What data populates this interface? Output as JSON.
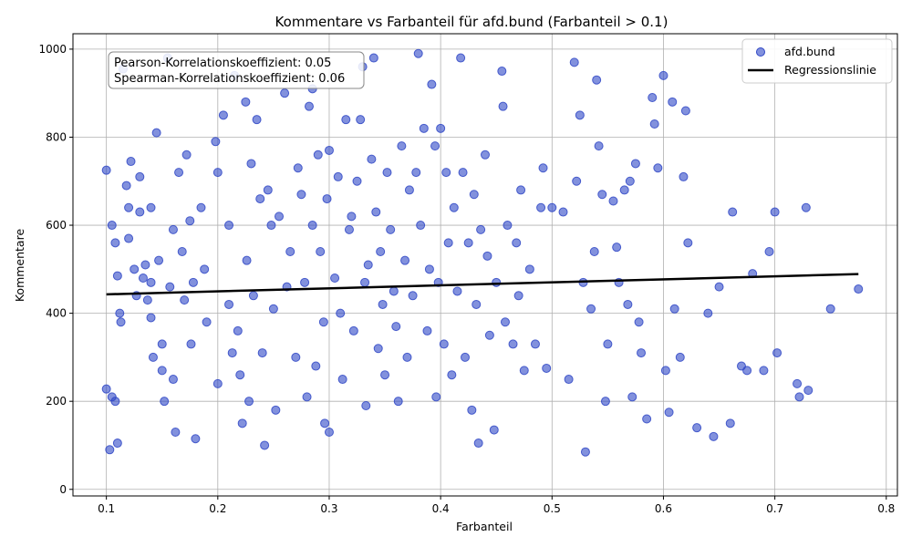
{
  "chart_data": {
    "type": "scatter",
    "title": "Kommentare vs Farbanteil für afd.bund (Farbanteil > 0.1)",
    "xlabel": "Farbanteil",
    "ylabel": "Kommentare",
    "xlim": [
      0.07,
      0.81
    ],
    "ylim": [
      -15,
      1035
    ],
    "xticks": [
      "0.1",
      "0.2",
      "0.3",
      "0.4",
      "0.5",
      "0.6",
      "0.7",
      "0.8"
    ],
    "yticks": [
      "0",
      "200",
      "400",
      "600",
      "800",
      "1000"
    ],
    "grid": true,
    "legend_position": "top-right",
    "stats_box": [
      "Pearson-Korrelationskoeffizient: 0.05",
      "Spearman-Korrelationskoeffizient: 0.06"
    ],
    "series": [
      {
        "name": "afd.bund",
        "kind": "scatter",
        "color": "#2f47c6",
        "points": [
          [
            0.1,
            725
          ],
          [
            0.105,
            600
          ],
          [
            0.108,
            560
          ],
          [
            0.11,
            485
          ],
          [
            0.112,
            400
          ],
          [
            0.113,
            380
          ],
          [
            0.1,
            228
          ],
          [
            0.105,
            210
          ],
          [
            0.108,
            200
          ],
          [
            0.103,
            90
          ],
          [
            0.11,
            105
          ],
          [
            0.115,
            955
          ],
          [
            0.118,
            690
          ],
          [
            0.12,
            640
          ],
          [
            0.12,
            570
          ],
          [
            0.122,
            745
          ],
          [
            0.125,
            500
          ],
          [
            0.127,
            440
          ],
          [
            0.13,
            630
          ],
          [
            0.13,
            710
          ],
          [
            0.133,
            480
          ],
          [
            0.135,
            510
          ],
          [
            0.137,
            430
          ],
          [
            0.14,
            640
          ],
          [
            0.14,
            470
          ],
          [
            0.14,
            390
          ],
          [
            0.142,
            300
          ],
          [
            0.145,
            810
          ],
          [
            0.147,
            520
          ],
          [
            0.15,
            330
          ],
          [
            0.15,
            270
          ],
          [
            0.152,
            200
          ],
          [
            0.155,
            980
          ],
          [
            0.157,
            460
          ],
          [
            0.16,
            590
          ],
          [
            0.16,
            250
          ],
          [
            0.162,
            130
          ],
          [
            0.165,
            720
          ],
          [
            0.168,
            540
          ],
          [
            0.17,
            430
          ],
          [
            0.172,
            760
          ],
          [
            0.175,
            610
          ],
          [
            0.176,
            330
          ],
          [
            0.178,
            470
          ],
          [
            0.18,
            115
          ],
          [
            0.185,
            640
          ],
          [
            0.188,
            500
          ],
          [
            0.19,
            380
          ],
          [
            0.198,
            790
          ],
          [
            0.2,
            720
          ],
          [
            0.2,
            240
          ],
          [
            0.205,
            850
          ],
          [
            0.21,
            600
          ],
          [
            0.21,
            420
          ],
          [
            0.213,
            310
          ],
          [
            0.215,
            940
          ],
          [
            0.218,
            360
          ],
          [
            0.22,
            260
          ],
          [
            0.222,
            150
          ],
          [
            0.225,
            880
          ],
          [
            0.226,
            520
          ],
          [
            0.228,
            200
          ],
          [
            0.23,
            740
          ],
          [
            0.232,
            440
          ],
          [
            0.235,
            840
          ],
          [
            0.238,
            660
          ],
          [
            0.24,
            310
          ],
          [
            0.242,
            100
          ],
          [
            0.245,
            680
          ],
          [
            0.248,
            600
          ],
          [
            0.25,
            410
          ],
          [
            0.252,
            180
          ],
          [
            0.255,
            620
          ],
          [
            0.26,
            900
          ],
          [
            0.262,
            460
          ],
          [
            0.265,
            540
          ],
          [
            0.27,
            300
          ],
          [
            0.272,
            730
          ],
          [
            0.275,
            670
          ],
          [
            0.278,
            470
          ],
          [
            0.28,
            210
          ],
          [
            0.282,
            870
          ],
          [
            0.285,
            600
          ],
          [
            0.285,
            910
          ],
          [
            0.288,
            280
          ],
          [
            0.29,
            760
          ],
          [
            0.292,
            540
          ],
          [
            0.295,
            380
          ],
          [
            0.296,
            150
          ],
          [
            0.298,
            660
          ],
          [
            0.3,
            770
          ],
          [
            0.3,
            130
          ],
          [
            0.305,
            480
          ],
          [
            0.308,
            710
          ],
          [
            0.31,
            400
          ],
          [
            0.312,
            250
          ],
          [
            0.315,
            840
          ],
          [
            0.318,
            590
          ],
          [
            0.32,
            620
          ],
          [
            0.322,
            360
          ],
          [
            0.325,
            700
          ],
          [
            0.328,
            840
          ],
          [
            0.33,
            960
          ],
          [
            0.332,
            470
          ],
          [
            0.333,
            190
          ],
          [
            0.335,
            510
          ],
          [
            0.338,
            750
          ],
          [
            0.34,
            980
          ],
          [
            0.342,
            630
          ],
          [
            0.344,
            320
          ],
          [
            0.346,
            540
          ],
          [
            0.348,
            420
          ],
          [
            0.35,
            260
          ],
          [
            0.352,
            720
          ],
          [
            0.355,
            590
          ],
          [
            0.358,
            450
          ],
          [
            0.36,
            370
          ],
          [
            0.362,
            200
          ],
          [
            0.365,
            780
          ],
          [
            0.368,
            520
          ],
          [
            0.37,
            300
          ],
          [
            0.372,
            680
          ],
          [
            0.375,
            440
          ],
          [
            0.378,
            720
          ],
          [
            0.38,
            990
          ],
          [
            0.382,
            600
          ],
          [
            0.385,
            820
          ],
          [
            0.388,
            360
          ],
          [
            0.39,
            500
          ],
          [
            0.392,
            920
          ],
          [
            0.395,
            780
          ],
          [
            0.396,
            210
          ],
          [
            0.398,
            470
          ],
          [
            0.4,
            820
          ],
          [
            0.403,
            330
          ],
          [
            0.405,
            720
          ],
          [
            0.407,
            560
          ],
          [
            0.41,
            260
          ],
          [
            0.412,
            640
          ],
          [
            0.415,
            450
          ],
          [
            0.418,
            980
          ],
          [
            0.42,
            720
          ],
          [
            0.422,
            300
          ],
          [
            0.425,
            560
          ],
          [
            0.428,
            180
          ],
          [
            0.43,
            670
          ],
          [
            0.432,
            420
          ],
          [
            0.434,
            105
          ],
          [
            0.436,
            590
          ],
          [
            0.44,
            760
          ],
          [
            0.442,
            530
          ],
          [
            0.444,
            350
          ],
          [
            0.448,
            135
          ],
          [
            0.45,
            470
          ],
          [
            0.455,
            950
          ],
          [
            0.456,
            870
          ],
          [
            0.458,
            380
          ],
          [
            0.46,
            600
          ],
          [
            0.465,
            330
          ],
          [
            0.468,
            560
          ],
          [
            0.47,
            440
          ],
          [
            0.472,
            680
          ],
          [
            0.475,
            270
          ],
          [
            0.48,
            500
          ],
          [
            0.485,
            330
          ],
          [
            0.49,
            640
          ],
          [
            0.492,
            730
          ],
          [
            0.495,
            275
          ],
          [
            0.5,
            640
          ],
          [
            0.51,
            630
          ],
          [
            0.515,
            250
          ],
          [
            0.52,
            970
          ],
          [
            0.522,
            700
          ],
          [
            0.525,
            850
          ],
          [
            0.528,
            470
          ],
          [
            0.53,
            85
          ],
          [
            0.535,
            410
          ],
          [
            0.538,
            540
          ],
          [
            0.54,
            930
          ],
          [
            0.542,
            780
          ],
          [
            0.545,
            670
          ],
          [
            0.548,
            200
          ],
          [
            0.55,
            330
          ],
          [
            0.555,
            655
          ],
          [
            0.558,
            550
          ],
          [
            0.56,
            470
          ],
          [
            0.565,
            680
          ],
          [
            0.568,
            420
          ],
          [
            0.57,
            700
          ],
          [
            0.572,
            210
          ],
          [
            0.575,
            740
          ],
          [
            0.578,
            380
          ],
          [
            0.58,
            310
          ],
          [
            0.585,
            160
          ],
          [
            0.59,
            890
          ],
          [
            0.592,
            830
          ],
          [
            0.595,
            730
          ],
          [
            0.6,
            940
          ],
          [
            0.602,
            270
          ],
          [
            0.605,
            175
          ],
          [
            0.608,
            880
          ],
          [
            0.61,
            410
          ],
          [
            0.615,
            300
          ],
          [
            0.618,
            710
          ],
          [
            0.62,
            860
          ],
          [
            0.622,
            560
          ],
          [
            0.63,
            140
          ],
          [
            0.64,
            400
          ],
          [
            0.645,
            120
          ],
          [
            0.65,
            460
          ],
          [
            0.66,
            150
          ],
          [
            0.662,
            630
          ],
          [
            0.67,
            280
          ],
          [
            0.675,
            270
          ],
          [
            0.68,
            490
          ],
          [
            0.69,
            270
          ],
          [
            0.695,
            540
          ],
          [
            0.7,
            630
          ],
          [
            0.702,
            310
          ],
          [
            0.72,
            240
          ],
          [
            0.722,
            210
          ],
          [
            0.728,
            640
          ],
          [
            0.73,
            225
          ],
          [
            0.75,
            410
          ],
          [
            0.775,
            455
          ]
        ]
      },
      {
        "name": "Regressionslinie",
        "kind": "line",
        "color": "#000000",
        "x": [
          0.1,
          0.775
        ],
        "y": [
          443,
          489
        ]
      }
    ]
  }
}
